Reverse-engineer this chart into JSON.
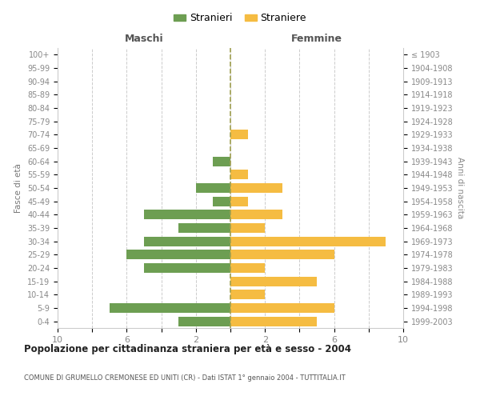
{
  "age_groups": [
    "100+",
    "95-99",
    "90-94",
    "85-89",
    "80-84",
    "75-79",
    "70-74",
    "65-69",
    "60-64",
    "55-59",
    "50-54",
    "45-49",
    "40-44",
    "35-39",
    "30-34",
    "25-29",
    "20-24",
    "15-19",
    "10-14",
    "5-9",
    "0-4"
  ],
  "birth_years": [
    "≤ 1903",
    "1904-1908",
    "1909-1913",
    "1914-1918",
    "1919-1923",
    "1924-1928",
    "1929-1933",
    "1934-1938",
    "1939-1943",
    "1944-1948",
    "1949-1953",
    "1954-1958",
    "1959-1963",
    "1964-1968",
    "1969-1973",
    "1974-1978",
    "1979-1983",
    "1984-1988",
    "1989-1993",
    "1994-1998",
    "1999-2003"
  ],
  "maschi": [
    0,
    0,
    0,
    0,
    0,
    0,
    0,
    0,
    1,
    0,
    2,
    1,
    5,
    3,
    5,
    6,
    5,
    0,
    0,
    7,
    3
  ],
  "femmine": [
    0,
    0,
    0,
    0,
    0,
    0,
    1,
    0,
    0,
    1,
    3,
    1,
    3,
    2,
    9,
    6,
    2,
    5,
    2,
    6,
    5
  ],
  "maschi_color": "#6d9e52",
  "femmine_color": "#f5bc42",
  "background_color": "#ffffff",
  "grid_color": "#cccccc",
  "center_line_color": "#a0a050",
  "title": "Popolazione per cittadinanza straniera per età e sesso - 2004",
  "subtitle": "COMUNE DI GRUMELLO CREMONESE ED UNITI (CR) - Dati ISTAT 1° gennaio 2004 - TUTTITALIA.IT",
  "header_left": "Maschi",
  "header_right": "Femmine",
  "ylabel_left": "Fasce di età",
  "ylabel_right": "Anni di nascita",
  "legend_maschi": "Stranieri",
  "legend_femmine": "Straniere",
  "xlim": 10,
  "xtick_labels": [
    "10",
    "",
    "6",
    "",
    "2",
    "",
    "2",
    "",
    "6",
    "",
    "10"
  ]
}
